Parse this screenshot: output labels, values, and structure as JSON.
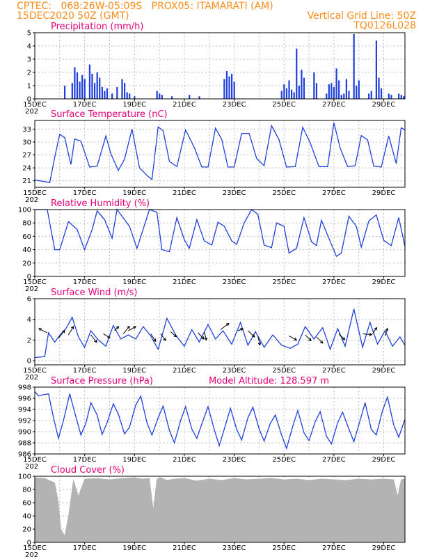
{
  "header": {
    "left_line1": "CPTEC:   068:26W-05:09S   PROX05: ITAMARATI (AM)",
    "left_line2": "15DEC2020 50Z (GMT)",
    "right_line1": "Vertical Grid Line: 50Z",
    "right_line2": "TQ0126L028"
  },
  "x_tick_labels": [
    "15DEC",
    "17DEC",
    "19DEC",
    "21DEC",
    "23DEC",
    "25DEC",
    "27DEC",
    "29DEC"
  ],
  "x_year_label": "202",
  "colors": {
    "series": "#1f3fdc",
    "title": "#e6007a",
    "header": "#ff8c1a",
    "cloud": "#b3b3b3",
    "arrow": "#000000"
  },
  "chart_data": [
    {
      "type": "bar",
      "title": "Precipitation (mm/h)",
      "ylim": [
        0,
        5
      ],
      "yticks": [
        0,
        1,
        2,
        3,
        4,
        5
      ],
      "x_unit": "day since 15DEC",
      "x": [
        1.2,
        1.5,
        1.6,
        1.7,
        1.8,
        1.9,
        2.0,
        2.2,
        2.3,
        2.4,
        2.5,
        2.6,
        2.7,
        2.8,
        2.9,
        3.1,
        3.3,
        3.5,
        3.6,
        3.7,
        3.8,
        4.0,
        4.9,
        5.0,
        5.1,
        5.5,
        6.2,
        6.6,
        7.6,
        7.7,
        7.8,
        7.9,
        8.0,
        9.9,
        10.0,
        10.1,
        10.2,
        10.3,
        10.4,
        10.5,
        10.6,
        10.7,
        10.8,
        11.2,
        11.3,
        11.7,
        11.8,
        11.9,
        12.0,
        12.1,
        12.2,
        12.3,
        12.4,
        12.5,
        12.6,
        12.8,
        12.9,
        13.0,
        13.4,
        13.5,
        13.7,
        13.8,
        13.9,
        14.2,
        14.3,
        14.6,
        14.7,
        14.8
      ],
      "values": [
        1.0,
        1.2,
        2.4,
        2.0,
        1.3,
        1.8,
        1.5,
        2.6,
        1.9,
        1.2,
        2.0,
        1.6,
        0.9,
        0.6,
        0.8,
        0.4,
        0.9,
        1.5,
        1.2,
        0.5,
        0.4,
        0.2,
        0.6,
        0.4,
        0.3,
        0.2,
        0.3,
        0.2,
        1.5,
        2.1,
        1.7,
        1.9,
        1.3,
        0.6,
        1.1,
        0.8,
        1.4,
        0.7,
        0.5,
        3.8,
        1.0,
        2.2,
        1.6,
        2.0,
        1.2,
        0.4,
        1.1,
        1.2,
        0.9,
        2.3,
        1.4,
        0.3,
        0.4,
        1.5,
        0.6,
        4.9,
        1.0,
        1.4,
        0.4,
        0.6,
        4.4,
        1.6,
        0.8,
        0.4,
        0.3,
        0.4,
        0.3,
        0.2
      ]
    },
    {
      "type": "line",
      "title": "Surface Temperature (nC)",
      "ylim": [
        19.5,
        35
      ],
      "yticks": [
        21,
        24,
        27,
        30,
        33
      ],
      "x_unit": "day since 15DEC",
      "x": [
        0,
        0.2,
        0.4,
        0.6,
        0.8,
        1.0,
        1.2,
        1.45,
        1.6,
        1.85,
        2.2,
        2.5,
        2.85,
        3.05,
        3.35,
        3.6,
        3.9,
        4.2,
        4.55,
        4.7,
        4.95,
        5.15,
        5.4,
        5.7,
        6.05,
        6.4,
        6.7,
        6.95,
        7.25,
        7.5,
        7.75,
        8.0,
        8.3,
        8.6,
        8.9,
        9.2,
        9.5,
        9.8,
        10.1,
        10.45,
        10.75,
        11.05,
        11.4,
        11.75,
        12.0,
        12.25,
        12.55,
        12.85,
        13.1,
        13.35,
        13.6,
        13.9,
        14.2,
        14.5,
        14.7,
        14.85
      ],
      "values": [
        21.2,
        21.0,
        20.8,
        20.6,
        26.5,
        31.8,
        31.0,
        24.8,
        30.7,
        30.2,
        24.2,
        24.4,
        31.4,
        27.3,
        23.4,
        26.0,
        33.0,
        24.0,
        22.0,
        21.3,
        33.5,
        32.6,
        25.5,
        24.3,
        32.8,
        28.7,
        24.2,
        24.2,
        33.2,
        30.6,
        24.2,
        24.2,
        32.0,
        32.0,
        26.2,
        24.5,
        33.8,
        30.5,
        24.2,
        24.3,
        33.4,
        29.8,
        24.3,
        24.3,
        34.5,
        28.6,
        24.3,
        24.5,
        31.5,
        30.5,
        24.4,
        24.2,
        31.4,
        25.0,
        33.3,
        32.8
      ]
    },
    {
      "type": "line",
      "title": "Relative Humidity (%)",
      "ylim": [
        0,
        100
      ],
      "yticks": [
        0,
        20,
        40,
        60,
        80,
        100
      ],
      "x_unit": "day since 15DEC",
      "x": [
        0,
        0.5,
        0.8,
        1.0,
        1.35,
        1.5,
        1.7,
        2.0,
        2.3,
        2.5,
        2.8,
        3.1,
        3.3,
        3.5,
        3.8,
        4.1,
        4.3,
        4.6,
        4.9,
        5.1,
        5.4,
        5.7,
        6.0,
        6.2,
        6.5,
        6.8,
        7.1,
        7.35,
        7.6,
        7.9,
        8.1,
        8.4,
        8.7,
        8.95,
        9.2,
        9.5,
        9.7,
        10.0,
        10.2,
        10.5,
        10.8,
        11.1,
        11.3,
        11.5,
        11.8,
        12.1,
        12.3,
        12.6,
        12.9,
        13.1,
        13.4,
        13.7,
        14.0,
        14.3,
        14.6,
        14.85
      ],
      "values": [
        100,
        100,
        40,
        40,
        82,
        77,
        70,
        40,
        70,
        98,
        85,
        57,
        100,
        90,
        75,
        42,
        65,
        100,
        96,
        40,
        37,
        88,
        55,
        42,
        85,
        53,
        47,
        81,
        75,
        53,
        48,
        80,
        100,
        93,
        47,
        43,
        80,
        75,
        35,
        42,
        88,
        52,
        46,
        84,
        57,
        30,
        35,
        90,
        75,
        44,
        83,
        92,
        54,
        46,
        88,
        45
      ]
    },
    {
      "type": "line",
      "title": "Surface Wind (m/s)",
      "ylim": [
        -0.4,
        6
      ],
      "yticks": [
        0,
        2,
        4,
        6
      ],
      "x_unit": "day since 15DEC",
      "x": [
        0,
        0.4,
        0.55,
        0.8,
        1.05,
        1.25,
        1.5,
        1.75,
        2.0,
        2.25,
        2.55,
        2.85,
        3.15,
        3.45,
        3.75,
        4.05,
        4.35,
        4.65,
        4.95,
        5.3,
        5.65,
        6.0,
        6.3,
        6.6,
        6.95,
        7.25,
        7.55,
        7.9,
        8.25,
        8.55,
        8.85,
        9.2,
        9.55,
        9.9,
        10.25,
        10.55,
        10.85,
        11.2,
        11.55,
        11.85,
        12.15,
        12.45,
        12.8,
        13.15,
        13.45,
        13.75,
        14.05,
        14.35,
        14.65,
        14.85
      ],
      "values": [
        0.3,
        0.4,
        2.7,
        1.8,
        2.6,
        3.1,
        4.2,
        2.3,
        1.3,
        2.9,
        2.0,
        1.4,
        3.4,
        2.1,
        2.5,
        2.1,
        3.3,
        2.4,
        1.1,
        4.1,
        2.5,
        1.4,
        3.0,
        1.8,
        3.5,
        2.1,
        2.9,
        1.6,
        3.7,
        1.5,
        2.8,
        1.3,
        2.5,
        1.5,
        1.2,
        1.6,
        3.3,
        2.1,
        3.2,
        1.1,
        3.1,
        1.4,
        5.0,
        1.3,
        3.7,
        1.6,
        2.9,
        1.4,
        2.3,
        1.5
      ],
      "arrows": [
        {
          "x": 0.5,
          "y": 2.7,
          "dx": -0.2,
          "dy": 0.1
        },
        {
          "x": 0.95,
          "y": 2.2,
          "dx": 0.15,
          "dy": 0.18
        },
        {
          "x": 1.35,
          "y": 2.5,
          "dx": 0.12,
          "dy": 0.2
        },
        {
          "x": 2.25,
          "y": 2.5,
          "dx": 0.14,
          "dy": -0.18
        },
        {
          "x": 2.75,
          "y": 2.6,
          "dx": 0.16,
          "dy": -0.1
        },
        {
          "x": 3.2,
          "y": 2.9,
          "dx": 0.1,
          "dy": 0.1
        },
        {
          "x": 3.55,
          "y": 2.6,
          "dx": 0.15,
          "dy": 0.18
        },
        {
          "x": 3.75,
          "y": 2.9,
          "dx": 0.18,
          "dy": 0.1
        },
        {
          "x": 4.65,
          "y": 2.6,
          "dx": 0.12,
          "dy": -0.18
        },
        {
          "x": 5.05,
          "y": 2.6,
          "dx": 0.12,
          "dy": -0.16
        },
        {
          "x": 5.45,
          "y": 2.8,
          "dx": 0.14,
          "dy": -0.12
        },
        {
          "x": 6.55,
          "y": 2.7,
          "dx": 0.14,
          "dy": -0.15
        },
        {
          "x": 6.8,
          "y": 2.8,
          "dx": 0.05,
          "dy": -0.2
        },
        {
          "x": 7.45,
          "y": 3.0,
          "dx": 0.2,
          "dy": 0.15
        },
        {
          "x": 8.15,
          "y": 2.9,
          "dx": 0.12,
          "dy": 0.05
        },
        {
          "x": 8.55,
          "y": 2.9,
          "dx": 0.16,
          "dy": -0.15
        },
        {
          "x": 8.95,
          "y": 2.4,
          "dx": 0.05,
          "dy": -0.22
        },
        {
          "x": 10.2,
          "y": 2.4,
          "dx": 0.18,
          "dy": -0.1
        },
        {
          "x": 10.85,
          "y": 2.5,
          "dx": 0.14,
          "dy": -0.14
        },
        {
          "x": 11.3,
          "y": 2.3,
          "dx": 0.15,
          "dy": -0.15
        },
        {
          "x": 12.2,
          "y": 2.6,
          "dx": 0.14,
          "dy": -0.14
        },
        {
          "x": 13.15,
          "y": 2.6,
          "dx": 0.22,
          "dy": -0.02
        },
        {
          "x": 13.55,
          "y": 2.6,
          "dx": 0.1,
          "dy": 0.15
        },
        {
          "x": 14.05,
          "y": 2.4,
          "dx": 0.06,
          "dy": 0.18
        }
      ]
    },
    {
      "type": "line",
      "title": "Surface Pressure (hPa)",
      "annotation": "Model Altitude: 128.597  m",
      "ylim": [
        986,
        998
      ],
      "yticks": [
        986,
        988,
        990,
        992,
        994,
        996,
        998
      ],
      "x_unit": "day since 15DEC",
      "x": [
        0,
        0.15,
        0.3,
        0.55,
        0.75,
        0.95,
        1.15,
        1.4,
        1.6,
        1.85,
        2.05,
        2.25,
        2.5,
        2.7,
        2.9,
        3.15,
        3.35,
        3.6,
        3.8,
        4.05,
        4.25,
        4.5,
        4.7,
        4.95,
        5.15,
        5.4,
        5.6,
        5.85,
        6.05,
        6.3,
        6.5,
        6.75,
        6.95,
        7.2,
        7.4,
        7.65,
        7.85,
        8.1,
        8.3,
        8.55,
        8.75,
        9.0,
        9.2,
        9.45,
        9.65,
        9.9,
        10.1,
        10.35,
        10.55,
        10.8,
        11.0,
        11.25,
        11.45,
        11.7,
        11.9,
        12.15,
        12.35,
        12.6,
        12.8,
        13.05,
        13.25,
        13.5,
        13.7,
        13.95,
        14.15,
        14.4,
        14.6,
        14.85
      ],
      "values": [
        997.2,
        996.4,
        996.6,
        996.8,
        992.5,
        988.8,
        992.0,
        996.8,
        993.5,
        989.4,
        991.5,
        995.2,
        993.0,
        989.5,
        991.6,
        995.0,
        993.2,
        989.6,
        990.8,
        994.8,
        996.4,
        991.6,
        989.4,
        992.5,
        994.6,
        990.2,
        988.0,
        992.0,
        994.5,
        990.5,
        988.8,
        992.0,
        994.5,
        990.4,
        987.5,
        991.2,
        994.2,
        990.4,
        988.5,
        992.5,
        994.4,
        990.5,
        988.3,
        991.5,
        993.0,
        989.4,
        987.0,
        991.0,
        993.8,
        989.8,
        988.4,
        991.8,
        993.6,
        989.2,
        987.8,
        991.6,
        993.5,
        990.5,
        988.2,
        992.0,
        995.2,
        990.4,
        989.4,
        993.8,
        996.2,
        991.2,
        989.0,
        992.2
      ]
    },
    {
      "type": "area",
      "title": "Cloud Cover (%)",
      "ylim": [
        0,
        100
      ],
      "yticks": [
        0,
        20,
        40,
        60,
        80,
        100
      ],
      "x_unit": "day since 15DEC",
      "x": [
        0,
        0.4,
        0.8,
        0.95,
        1.05,
        1.2,
        1.35,
        1.55,
        1.75,
        2.0,
        2.5,
        3.0,
        3.5,
        4.0,
        4.3,
        4.6,
        4.75,
        4.9,
        5.05,
        5.3,
        5.6,
        6.0,
        6.5,
        7.0,
        7.5,
        8.0,
        8.5,
        9.0,
        9.5,
        10.0,
        10.5,
        11.0,
        11.5,
        12.0,
        12.5,
        13.0,
        13.5,
        14.0,
        14.4,
        14.55,
        14.7,
        14.85
      ],
      "values": [
        98,
        97,
        90,
        60,
        20,
        10,
        40,
        95,
        70,
        96,
        97,
        95,
        97,
        98,
        96,
        97,
        50,
        96,
        98,
        94,
        96,
        97,
        93,
        96,
        94,
        97,
        95,
        96,
        97,
        95,
        96,
        94,
        96,
        95,
        94,
        96,
        95,
        96,
        95,
        70,
        95,
        96
      ]
    }
  ]
}
